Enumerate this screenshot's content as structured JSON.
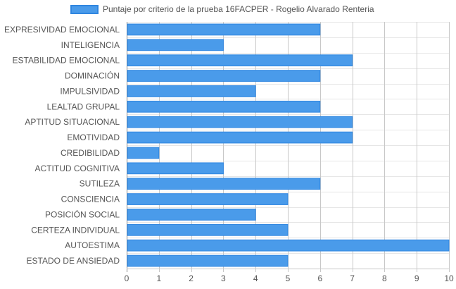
{
  "legend": {
    "label": "Puntaje por criterio de la prueba 16FACPER - Rogelio Alvarado Renteria",
    "color": "#4a9bea"
  },
  "chart_data": {
    "type": "bar",
    "orientation": "horizontal",
    "categories": [
      "EXPRESIVIDAD EMOCIONAL",
      "INTELIGENCIA",
      "ESTABILIDAD EMOCIONAL",
      "DOMINACIÓN",
      "IMPULSIVIDAD",
      "LEALTAD GRUPAL",
      "APTITUD SITUACIONAL",
      "EMOTIVIDAD",
      "CREDIBILIDAD",
      "ACTITUD COGNITIVA",
      "SUTILEZA",
      "CONSCIENCIA",
      "POSICIÓN SOCIAL",
      "CERTEZA INDIVIDUAL",
      "AUTOESTIMA",
      "ESTADO DE ANSIEDAD"
    ],
    "series": [
      {
        "name": "Puntaje por criterio de la prueba 16FACPER - Rogelio Alvarado Renteria",
        "values": [
          6,
          3,
          7,
          6,
          4,
          6,
          7,
          7,
          1,
          3,
          6,
          5,
          4,
          5,
          10,
          5
        ],
        "color": "#4a9bea",
        "border_color": "#2f86e0"
      }
    ],
    "xlim": [
      0,
      10
    ],
    "xticks": [
      0,
      1,
      2,
      3,
      4,
      5,
      6,
      7,
      8,
      9,
      10
    ],
    "grid": true,
    "legend_position": "top"
  }
}
